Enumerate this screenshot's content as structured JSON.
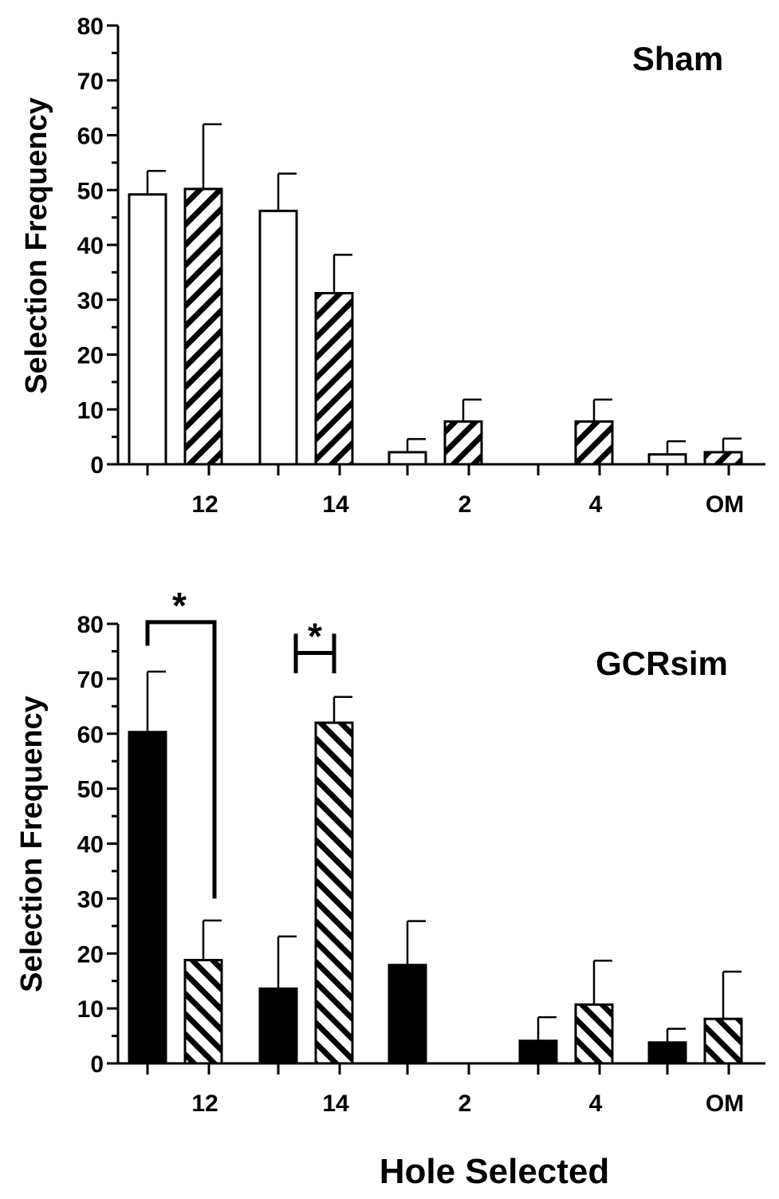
{
  "figure": {
    "xlabel": "Hole Selected"
  },
  "chart_data": [
    {
      "type": "bar",
      "title": "Sham",
      "ylabel": "Selection Frequency",
      "xlabel": "",
      "ylim": [
        0,
        80
      ],
      "yticks": [
        0,
        10,
        20,
        30,
        40,
        50,
        60,
        70,
        80
      ],
      "categories": [
        "12",
        "14",
        "2",
        "4",
        "OM"
      ],
      "series": [
        {
          "fill": "#ffffff",
          "pattern": "none",
          "values": [
            49.2,
            46.2,
            2.2,
            0,
            1.8
          ],
          "errors": [
            4.3,
            6.8,
            2.4,
            0,
            2.4
          ]
        },
        {
          "fill": "#ffffff",
          "pattern": "diagonal-up",
          "values": [
            50.2,
            31.2,
            7.8,
            7.8,
            2.2
          ],
          "errors": [
            11.8,
            7.0,
            4.0,
            4.0,
            2.5
          ]
        }
      ],
      "annotations": []
    },
    {
      "type": "bar",
      "title": "GCRsim",
      "ylabel": "Selection Frequency",
      "xlabel": "",
      "ylim": [
        0,
        80
      ],
      "yticks": [
        0,
        10,
        20,
        30,
        40,
        50,
        60,
        70,
        80
      ],
      "categories": [
        "12",
        "14",
        "2",
        "4",
        "OM"
      ],
      "series": [
        {
          "fill": "#000000",
          "pattern": "solid",
          "values": [
            60.3,
            13.6,
            17.9,
            4.1,
            3.8
          ],
          "errors": [
            11.0,
            9.5,
            8.0,
            4.3,
            2.5
          ]
        },
        {
          "fill": "#ffffff",
          "pattern": "diagonal-down",
          "values": [
            18.8,
            62.0,
            0,
            10.7,
            8.1
          ],
          "errors": [
            7.2,
            4.7,
            0,
            8.0,
            8.6
          ]
        }
      ],
      "annotations": [
        {
          "label": "*",
          "category_index": 0
        },
        {
          "label": "*",
          "category_index": 1
        }
      ]
    }
  ]
}
